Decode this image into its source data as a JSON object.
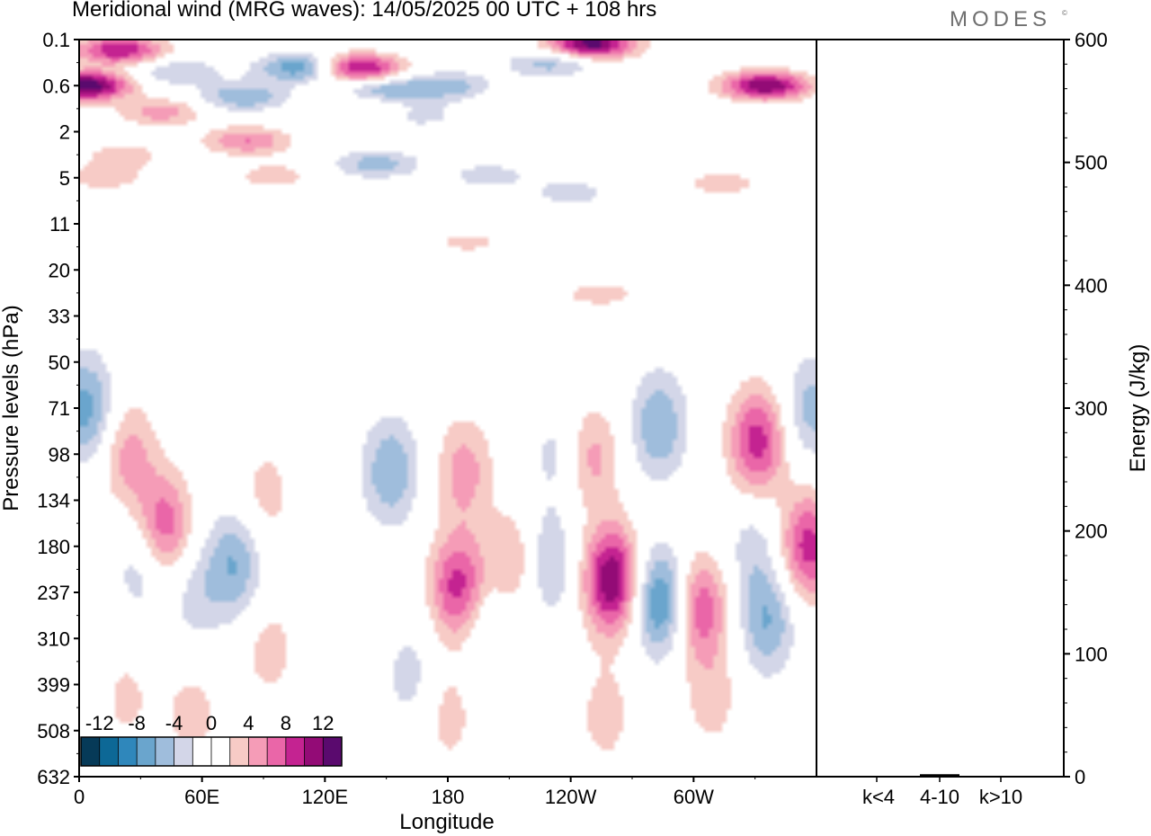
{
  "header": {
    "title": "Meridional wind (MRG waves):  14/05/2025  00 UTC  + 108 hrs",
    "brand": "MODES",
    "brand_mark": "©"
  },
  "colors": {
    "levels": [
      -14,
      -12,
      -10,
      -8,
      -6,
      -4,
      -2,
      0,
      2,
      4,
      6,
      8,
      10,
      12,
      14
    ],
    "fills": [
      "#063a58",
      "#0d6896",
      "#2f87bb",
      "#6aa5cd",
      "#9fbddc",
      "#d3d6e8",
      "#ffffff",
      "#ffffff",
      "#f7cbc6",
      "#f59cb7",
      "#ea66a8",
      "#c42391",
      "#930b76",
      "#5a0a6e"
    ]
  },
  "chart_data": [
    {
      "type": "heatmap",
      "title": "Meridional wind (MRG waves):  14/05/2025  00 UTC  + 108 hrs",
      "xlabel": "Longitude",
      "ylabel": "Pressure levels (hPa)",
      "x_ticks": [
        "0",
        "60E",
        "120E",
        "180",
        "120W",
        "60W"
      ],
      "x_tick_degrees": [
        0,
        60,
        120,
        180,
        240,
        300
      ],
      "xlim": [
        0,
        360
      ],
      "y_ticks": [
        "0.1",
        "0.6",
        "2",
        "5",
        "11",
        "20",
        "33",
        "50",
        "71",
        "98",
        "134",
        "180",
        "237",
        "310",
        "399",
        "508",
        "632"
      ],
      "colorbar": {
        "ticks": [
          "-12",
          "-8",
          "-4",
          "0",
          "4",
          "8",
          "12"
        ],
        "levels": [
          -14,
          -12,
          -10,
          -8,
          -6,
          -4,
          -2,
          0,
          2,
          4,
          6,
          8,
          10,
          12,
          14
        ]
      },
      "features": [
        {
          "lon": 3,
          "level": 0.6,
          "value": 14
        },
        {
          "lon": 20,
          "level": 0.15,
          "value": 10
        },
        {
          "lon": 40,
          "level": 1.2,
          "value": 5
        },
        {
          "lon": 48,
          "level": 0.35,
          "value": -4
        },
        {
          "lon": 22,
          "level": 3.2,
          "value": 3
        },
        {
          "lon": 80,
          "level": 0.8,
          "value": -6
        },
        {
          "lon": 110,
          "level": 0.3,
          "value": -9
        },
        {
          "lon": 135,
          "level": 0.3,
          "value": 12
        },
        {
          "lon": 82,
          "level": 2.4,
          "value": 6
        },
        {
          "lon": 150,
          "level": 0.7,
          "value": -6
        },
        {
          "lon": 145,
          "level": 1.0,
          "value": 3
        },
        {
          "lon": 165,
          "level": 1.3,
          "value": -3
        },
        {
          "lon": 145,
          "level": 3.8,
          "value": -5
        },
        {
          "lon": 95,
          "level": 4.8,
          "value": 3
        },
        {
          "lon": 180,
          "level": 0.6,
          "value": -5
        },
        {
          "lon": 250,
          "level": 0.12,
          "value": 13
        },
        {
          "lon": 230,
          "level": 0.25,
          "value": -5
        },
        {
          "lon": 335,
          "level": 0.6,
          "value": 12
        },
        {
          "lon": 313,
          "level": 5.5,
          "value": 3
        },
        {
          "lon": 200,
          "level": 4.8,
          "value": -3
        },
        {
          "lon": 240,
          "level": 6.5,
          "value": -3
        },
        {
          "lon": 254,
          "level": 26,
          "value": 3
        },
        {
          "lon": 12,
          "level": 5.0,
          "value": 3
        },
        {
          "lon": 190,
          "level": 14,
          "value": 2.5
        },
        {
          "lon": 3,
          "level": 71,
          "value": -7
        },
        {
          "lon": 24,
          "level": 98,
          "value": 5
        },
        {
          "lon": 41,
          "level": 160,
          "value": 8
        },
        {
          "lon": 31,
          "level": 200,
          "value": -4
        },
        {
          "lon": 76,
          "level": 200,
          "value": -6
        },
        {
          "lon": 57,
          "level": 240,
          "value": -3
        },
        {
          "lon": 93,
          "level": 330,
          "value": 3
        },
        {
          "lon": 91,
          "level": 130,
          "value": 3
        },
        {
          "lon": 152,
          "level": 110,
          "value": -6
        },
        {
          "lon": 162,
          "level": 380,
          "value": -3
        },
        {
          "lon": 185,
          "level": 230,
          "value": 9
        },
        {
          "lon": 188,
          "level": 110,
          "value": 5
        },
        {
          "lon": 200,
          "level": 290,
          "value": -3
        },
        {
          "lon": 213,
          "level": 200,
          "value": 5
        },
        {
          "lon": 228,
          "level": 200,
          "value": -5
        },
        {
          "lon": 234,
          "level": 98,
          "value": -3
        },
        {
          "lon": 250,
          "level": 100,
          "value": 5
        },
        {
          "lon": 260,
          "level": 220,
          "value": 12
        },
        {
          "lon": 283,
          "level": 80,
          "value": -6
        },
        {
          "lon": 284,
          "level": 250,
          "value": -9
        },
        {
          "lon": 303,
          "level": 260,
          "value": 8
        },
        {
          "lon": 336,
          "level": 280,
          "value": -6
        },
        {
          "lon": 329,
          "level": 180,
          "value": -3
        },
        {
          "lon": 331,
          "level": 90,
          "value": 9
        },
        {
          "lon": 356,
          "level": 180,
          "value": 9
        },
        {
          "lon": 358,
          "level": 71,
          "value": -5
        },
        {
          "lon": 180,
          "level": 470,
          "value": 3
        },
        {
          "lon": 257,
          "level": 470,
          "value": 3
        },
        {
          "lon": 309,
          "level": 430,
          "value": 3
        },
        {
          "lon": 23,
          "level": 430,
          "value": 2.5
        },
        {
          "lon": 55,
          "level": 470,
          "value": 3
        }
      ]
    },
    {
      "type": "bar",
      "ylabel": "Energy (J/kg)",
      "categories": [
        "k<4",
        "4-10",
        "k>10"
      ],
      "values": [
        0.5,
        2,
        0.5
      ],
      "ylim": [
        0,
        600
      ],
      "y_ticks": [
        "0",
        "100",
        "200",
        "300",
        "400",
        "500",
        "600"
      ]
    }
  ]
}
